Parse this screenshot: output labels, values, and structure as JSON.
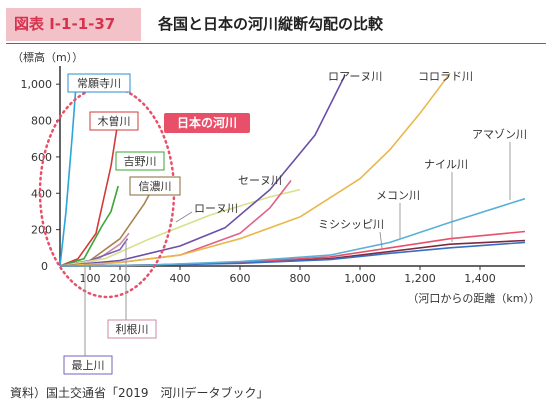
{
  "header": {
    "figure_number": "図表 Ⅰ-1-1-37",
    "title": "各国と日本の河川縦断勾配の比較"
  },
  "source": "資料）国土交通省「2019　河川データブック」",
  "colors": {
    "accent": "#d6334f",
    "japan_circle": "#e8506a",
    "japan_label_bg": "#e8506a"
  },
  "chart_data": {
    "type": "line",
    "title": "各国と日本の河川縦断勾配の比較",
    "ylabel": "（標高（m））",
    "xlabel": "（河口からの距離（km））",
    "xlim": [
      0,
      1550
    ],
    "ylim": [
      0,
      1100
    ],
    "x_ticks": [
      100,
      200,
      400,
      600,
      800,
      1000,
      1200,
      1400
    ],
    "x_tick_labels": [
      "100",
      "200",
      "400",
      "600",
      "800",
      "1,000",
      "1,200",
      "1,400"
    ],
    "y_ticks": [
      0,
      200,
      400,
      600,
      800,
      1000
    ],
    "y_tick_labels": [
      "0",
      "200",
      "400",
      "600",
      "800",
      "1,000"
    ],
    "origin_label": "0",
    "grid": false,
    "japan_group_label": "日本の河川",
    "series": [
      {
        "name": "常願寺川",
        "color": "#2aa6d8",
        "label_color": "#2a8ecf",
        "group": "japan",
        "points": [
          [
            0,
            0
          ],
          [
            20,
            300
          ],
          [
            40,
            700
          ],
          [
            56,
            1050
          ]
        ]
      },
      {
        "name": "木曽川",
        "color": "#d23a3a",
        "label_color": "#d23a3a",
        "group": "japan",
        "points": [
          [
            0,
            0
          ],
          [
            60,
            40
          ],
          [
            120,
            180
          ],
          [
            170,
            550
          ],
          [
            190,
            760
          ]
        ]
      },
      {
        "name": "吉野川",
        "color": "#3aa635",
        "label_color": "#3aa635",
        "group": "japan",
        "points": [
          [
            0,
            0
          ],
          [
            80,
            40
          ],
          [
            140,
            220
          ],
          [
            170,
            300
          ],
          [
            194,
            440
          ]
        ]
      },
      {
        "name": "信濃川",
        "color": "#a88450",
        "label_color": "#8b6a3a",
        "group": "japan",
        "points": [
          [
            0,
            0
          ],
          [
            100,
            30
          ],
          [
            200,
            150
          ],
          [
            280,
            340
          ],
          [
            300,
            400
          ]
        ]
      },
      {
        "name": "利根川",
        "color": "#cd8aa8",
        "label_color": "#555555",
        "group": "japan",
        "points": [
          [
            0,
            0
          ],
          [
            120,
            30
          ],
          [
            200,
            120
          ],
          [
            230,
            180
          ]
        ]
      },
      {
        "name": "最上川",
        "color": "#7a63b8",
        "label_color": "#555555",
        "group": "japan",
        "points": [
          [
            0,
            0
          ],
          [
            100,
            30
          ],
          [
            200,
            90
          ],
          [
            225,
            150
          ]
        ]
      },
      {
        "name": "ローヌ川",
        "color": "#d9e08a",
        "label_color": "#333333",
        "points": [
          [
            0,
            0
          ],
          [
            150,
            40
          ],
          [
            300,
            150
          ],
          [
            500,
            280
          ],
          [
            700,
            380
          ],
          [
            800,
            420
          ]
        ]
      },
      {
        "name": "セーヌ川",
        "color": "#e0608a",
        "label_color": "#333333",
        "points": [
          [
            0,
            0
          ],
          [
            200,
            20
          ],
          [
            400,
            60
          ],
          [
            600,
            180
          ],
          [
            700,
            320
          ],
          [
            770,
            470
          ]
        ]
      },
      {
        "name": "ロアーヌ川",
        "color": "#6a4fa8",
        "label_color": "#333333",
        "points": [
          [
            0,
            0
          ],
          [
            200,
            30
          ],
          [
            400,
            110
          ],
          [
            550,
            210
          ],
          [
            700,
            420
          ],
          [
            850,
            720
          ],
          [
            950,
            1050
          ]
        ]
      },
      {
        "name": "コロラド川",
        "color": "#e8b84a",
        "label_color": "#333333",
        "points": [
          [
            0,
            0
          ],
          [
            200,
            20
          ],
          [
            400,
            60
          ],
          [
            600,
            150
          ],
          [
            800,
            270
          ],
          [
            1000,
            480
          ],
          [
            1100,
            640
          ],
          [
            1200,
            840
          ],
          [
            1300,
            1060
          ]
        ]
      },
      {
        "name": "ミシシッピ川",
        "color": "#7d2a3f",
        "label_color": "#333333",
        "points": [
          [
            0,
            0
          ],
          [
            300,
            5
          ],
          [
            600,
            20
          ],
          [
            900,
            40
          ],
          [
            1100,
            80
          ],
          [
            1300,
            120
          ],
          [
            1550,
            140
          ]
        ]
      },
      {
        "name": "メコン川",
        "color": "#e8506a",
        "label_color": "#333333",
        "points": [
          [
            0,
            0
          ],
          [
            300,
            5
          ],
          [
            600,
            20
          ],
          [
            900,
            50
          ],
          [
            1100,
            100
          ],
          [
            1300,
            150
          ],
          [
            1550,
            190
          ]
        ]
      },
      {
        "name": "ナイル川",
        "color": "#3a6fbf",
        "label_color": "#333333",
        "points": [
          [
            0,
            0
          ],
          [
            300,
            5
          ],
          [
            600,
            15
          ],
          [
            900,
            35
          ],
          [
            1100,
            70
          ],
          [
            1300,
            100
          ],
          [
            1550,
            130
          ]
        ]
      },
      {
        "name": "アマゾン川",
        "color": "#5ab0d8",
        "label_color": "#333333",
        "points": [
          [
            0,
            0
          ],
          [
            300,
            5
          ],
          [
            600,
            25
          ],
          [
            900,
            60
          ],
          [
            1100,
            130
          ],
          [
            1300,
            240
          ],
          [
            1550,
            370
          ]
        ]
      }
    ]
  }
}
